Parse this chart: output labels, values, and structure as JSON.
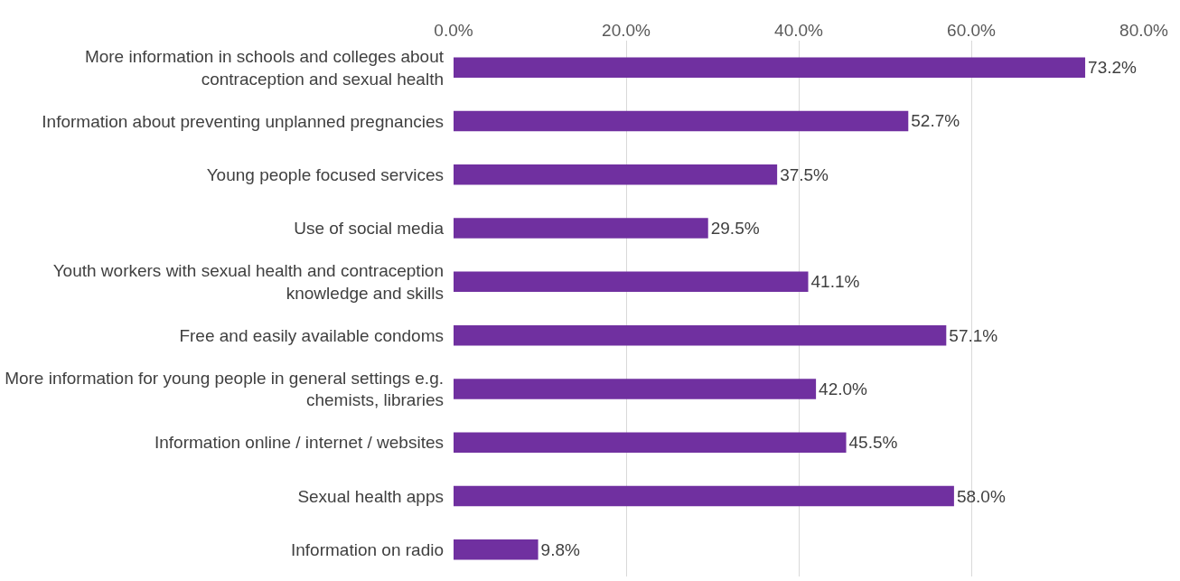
{
  "chart_data": {
    "type": "bar",
    "orientation": "horizontal",
    "categories": [
      "More information in schools and colleges about contraception and sexual health",
      "Information about preventing unplanned pregnancies",
      "Young people focused services",
      "Use of social media",
      "Youth workers with sexual health and contraception knowledge and skills",
      "Free and easily available condoms",
      "More information for young people in general settings e.g. chemists, libraries",
      "Information online / internet / websites",
      "Sexual health apps",
      "Information on radio"
    ],
    "values": [
      73.2,
      52.7,
      37.5,
      29.5,
      41.1,
      57.1,
      42.0,
      45.5,
      58.0,
      9.8
    ],
    "value_labels": [
      "73.2%",
      "52.7%",
      "37.5%",
      "29.5%",
      "41.1%",
      "57.1%",
      "42.0%",
      "45.5%",
      "58.0%",
      "9.8%"
    ],
    "color": "#7030a0",
    "xlim": [
      0,
      80
    ],
    "xticks": [
      {
        "value": 0,
        "label": "0.0%"
      },
      {
        "value": 20,
        "label": "20.0%"
      },
      {
        "value": 40,
        "label": "40.0%"
      },
      {
        "value": 60,
        "label": "60.0%"
      },
      {
        "value": 80,
        "label": "80.0%"
      }
    ],
    "grid": "x"
  }
}
